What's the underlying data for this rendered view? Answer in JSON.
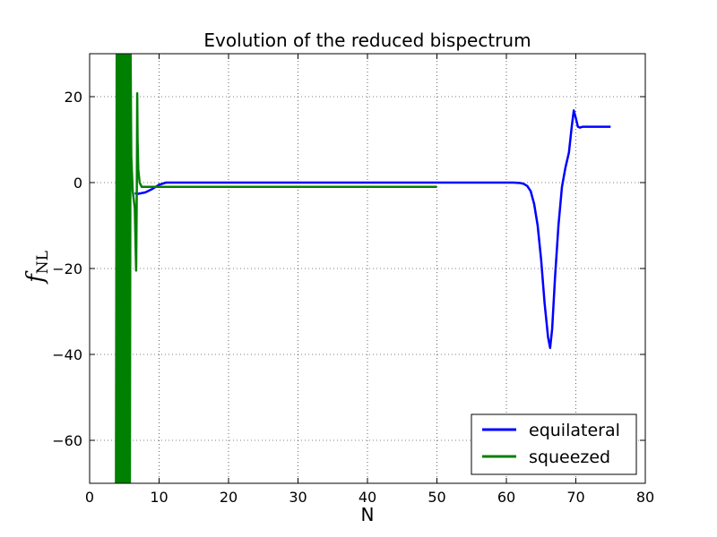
{
  "chart_data": {
    "type": "line",
    "title": "Evolution of the reduced bispectrum",
    "xlabel": "N",
    "ylabel": "f",
    "ylabel_subscript": "NL",
    "xlim": [
      0,
      80
    ],
    "ylim": [
      -70,
      30
    ],
    "xticks": [
      0,
      10,
      20,
      30,
      40,
      50,
      60,
      70,
      80
    ],
    "yticks": [
      -60,
      -40,
      -20,
      0,
      20
    ],
    "xtick_labels": [
      "0",
      "10",
      "20",
      "30",
      "40",
      "50",
      "60",
      "70",
      "80"
    ],
    "ytick_labels": [
      "−60",
      "−40",
      "−20",
      "0",
      "20"
    ],
    "grid": true,
    "legend_position": "lower-right",
    "series": [
      {
        "name": "equilateral",
        "color": "#0000ff",
        "x": [
          6.5,
          7,
          8,
          9,
          10,
          11,
          15,
          20,
          30,
          40,
          50,
          55,
          60,
          61,
          62,
          62.5,
          63,
          63.5,
          64,
          64.5,
          65,
          65.5,
          66,
          66.3,
          66.6,
          67,
          67.5,
          68,
          68.5,
          69,
          69.4,
          69.7,
          70,
          70.3,
          70.6,
          71,
          72,
          75
        ],
        "y": [
          -2.5,
          -2.6,
          -2.3,
          -1.5,
          -0.5,
          0,
          0,
          0,
          0,
          0,
          0,
          0,
          0,
          0,
          -0.1,
          -0.3,
          -0.8,
          -2,
          -5,
          -10,
          -18,
          -28,
          -36,
          -38.5,
          -34,
          -22,
          -10,
          -1,
          3.5,
          7,
          13,
          16.8,
          15,
          13,
          12.8,
          13,
          13,
          13
        ]
      },
      {
        "name": "squeezed",
        "color": "#008000",
        "x": [
          3.8,
          3.9,
          4.0,
          4.1,
          4.2,
          4.3,
          4.4,
          4.5,
          4.6,
          4.7,
          4.8,
          4.9,
          5.0,
          5.1,
          5.2,
          5.3,
          5.4,
          5.5,
          5.6,
          5.7,
          5.8,
          5.9,
          6.0,
          6.2,
          6.5,
          6.7,
          6.8,
          6.85,
          6.9,
          7.0,
          7.2,
          7.5,
          8,
          9,
          10,
          15,
          20,
          30,
          40,
          50
        ],
        "y": [
          -70,
          30,
          -70,
          30,
          -70,
          30,
          -70,
          30,
          -70,
          30,
          -70,
          30,
          -70,
          30,
          -70,
          30,
          -70,
          30,
          -70,
          30,
          -70,
          30,
          6,
          -2,
          -6,
          -20.5,
          0,
          20.8,
          10,
          3,
          0,
          -1,
          -1,
          -1,
          -1,
          -1,
          -1,
          -1,
          -1,
          -1
        ]
      }
    ]
  }
}
